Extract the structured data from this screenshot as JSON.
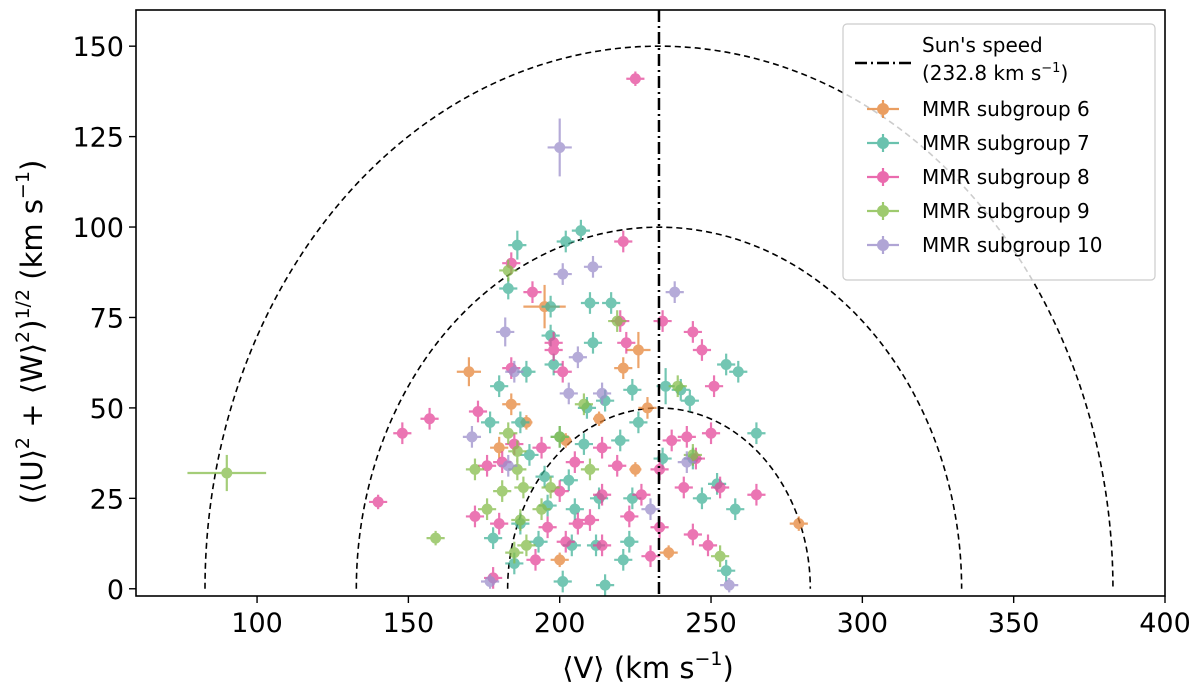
{
  "chart_data": {
    "type": "scatter",
    "title": "",
    "xlabel": "⟨V⟩ (km s",
    "xlabel_exp": "−1",
    "xlabel_tail": ")",
    "ylabel": "(⟨U⟩",
    "ylabel_exp1": "2",
    "ylabel_mid": " + ⟨W⟩",
    "ylabel_exp2": "2",
    "ylabel_mid2": ")",
    "ylabel_exp3": "1/2",
    "ylabel_unit": "   (km s",
    "ylabel_unit_exp": "−1",
    "ylabel_unit_tail": ")",
    "xlim": [
      60,
      400
    ],
    "ylim": [
      -2,
      160
    ],
    "xticks": [
      100,
      150,
      200,
      250,
      300,
      350,
      400
    ],
    "yticks": [
      0,
      25,
      50,
      75,
      100,
      125,
      150
    ],
    "grid": false,
    "legend_position": "top-right",
    "sun_speed": {
      "x": 232.8,
      "label_line1": "Sun's speed",
      "label_line2": "(232.8 km s",
      "label_line2_exp": "−1",
      "label_line2_tail": ")",
      "color": "#000000"
    },
    "circles": {
      "center_x": 232.8,
      "radii": [
        50,
        100,
        150
      ],
      "color": "#000000"
    },
    "series": [
      {
        "name": "MMR subgroup 6",
        "color": "#e6863a",
        "points": [
          [
            195,
            78,
            7,
            6
          ],
          [
            226,
            66,
            4,
            5
          ],
          [
            221,
            61,
            3,
            3
          ],
          [
            170,
            60,
            4,
            4
          ],
          [
            184,
            51,
            3,
            3
          ],
          [
            180,
            39,
            3,
            3
          ],
          [
            229,
            50,
            3,
            3
          ],
          [
            189,
            46,
            2,
            2
          ],
          [
            202,
            41,
            2,
            2
          ],
          [
            236,
            10,
            3,
            2
          ],
          [
            200,
            8,
            3,
            2
          ],
          [
            279,
            18,
            3,
            2
          ],
          [
            213,
            47,
            2,
            2
          ],
          [
            225,
            33,
            2,
            2
          ]
        ]
      },
      {
        "name": "MMR subgroup 7",
        "color": "#45b49a",
        "points": [
          [
            186,
            95,
            3,
            4
          ],
          [
            202,
            96,
            3,
            3
          ],
          [
            207,
            99,
            3,
            3
          ],
          [
            183,
            83,
            3,
            3
          ],
          [
            197,
            78,
            3,
            3
          ],
          [
            210,
            79,
            3,
            3
          ],
          [
            217,
            79,
            3,
            3
          ],
          [
            197,
            70,
            3,
            3
          ],
          [
            189,
            60,
            3,
            3
          ],
          [
            198,
            62,
            3,
            3
          ],
          [
            211,
            68,
            3,
            3
          ],
          [
            235,
            56,
            3,
            5
          ],
          [
            240,
            55,
            3,
            3
          ],
          [
            243,
            52,
            3,
            3
          ],
          [
            255,
            62,
            3,
            3
          ],
          [
            259,
            60,
            3,
            3
          ],
          [
            265,
            43,
            3,
            3
          ],
          [
            224,
            55,
            3,
            3
          ],
          [
            215,
            52,
            3,
            3
          ],
          [
            180,
            56,
            3,
            3
          ],
          [
            187,
            46,
            3,
            3
          ],
          [
            177,
            46,
            3,
            3
          ],
          [
            209,
            50,
            3,
            3
          ],
          [
            220,
            41,
            3,
            3
          ],
          [
            226,
            46,
            3,
            3
          ],
          [
            200,
            42,
            3,
            3
          ],
          [
            208,
            40,
            3,
            3
          ],
          [
            195,
            31,
            3,
            3
          ],
          [
            203,
            30,
            3,
            3
          ],
          [
            213,
            25,
            3,
            3
          ],
          [
            224,
            25,
            3,
            3
          ],
          [
            196,
            23,
            3,
            3
          ],
          [
            205,
            22,
            3,
            3
          ],
          [
            187,
            18,
            3,
            3
          ],
          [
            178,
            14,
            3,
            3
          ],
          [
            193,
            13,
            3,
            3
          ],
          [
            204,
            12,
            3,
            3
          ],
          [
            212,
            12,
            3,
            3
          ],
          [
            223,
            13,
            3,
            3
          ],
          [
            185,
            7,
            3,
            3
          ],
          [
            221,
            8,
            3,
            3
          ],
          [
            255,
            5,
            3,
            3
          ],
          [
            201,
            2,
            3,
            3
          ],
          [
            215,
            1,
            3,
            3
          ],
          [
            247,
            25,
            3,
            3
          ],
          [
            258,
            22,
            3,
            3
          ],
          [
            234,
            36,
            3,
            3
          ],
          [
            244,
            36,
            3,
            3
          ],
          [
            190,
            37,
            3,
            3
          ],
          [
            252,
            29,
            3,
            3
          ]
        ]
      },
      {
        "name": "MMR subgroup 8",
        "color": "#e5479a",
        "points": [
          [
            225,
            141,
            3,
            2
          ],
          [
            221,
            96,
            3,
            3
          ],
          [
            184,
            90,
            3,
            3
          ],
          [
            191,
            82,
            3,
            3
          ],
          [
            220,
            74,
            3,
            3
          ],
          [
            234,
            74,
            3,
            3
          ],
          [
            198,
            68,
            3,
            3
          ],
          [
            222,
            68,
            3,
            3
          ],
          [
            244,
            71,
            3,
            3
          ],
          [
            198,
            66,
            3,
            3
          ],
          [
            184,
            61,
            3,
            3
          ],
          [
            201,
            60,
            3,
            3
          ],
          [
            247,
            66,
            3,
            3
          ],
          [
            251,
            56,
            3,
            3
          ],
          [
            157,
            47,
            3,
            3
          ],
          [
            148,
            43,
            3,
            3
          ],
          [
            173,
            49,
            3,
            3
          ],
          [
            181,
            35,
            3,
            3
          ],
          [
            185,
            40,
            3,
            3
          ],
          [
            194,
            39,
            3,
            3
          ],
          [
            214,
            39,
            3,
            3
          ],
          [
            237,
            41,
            3,
            3
          ],
          [
            242,
            42,
            3,
            3
          ],
          [
            250,
            43,
            3,
            3
          ],
          [
            205,
            35,
            3,
            3
          ],
          [
            219,
            34,
            3,
            3
          ],
          [
            233,
            33,
            3,
            3
          ],
          [
            245,
            36,
            3,
            3
          ],
          [
            176,
            34,
            3,
            3
          ],
          [
            200,
            27,
            3,
            3
          ],
          [
            214,
            26,
            3,
            3
          ],
          [
            227,
            26,
            3,
            3
          ],
          [
            241,
            28,
            3,
            3
          ],
          [
            253,
            28,
            3,
            3
          ],
          [
            265,
            26,
            3,
            3
          ],
          [
            140,
            24,
            3,
            2
          ],
          [
            172,
            20,
            3,
            3
          ],
          [
            180,
            18,
            3,
            3
          ],
          [
            196,
            17,
            3,
            3
          ],
          [
            210,
            19,
            3,
            3
          ],
          [
            223,
            20,
            3,
            3
          ],
          [
            233,
            17,
            3,
            3
          ],
          [
            244,
            15,
            3,
            3
          ],
          [
            202,
            13,
            3,
            3
          ],
          [
            214,
            12,
            3,
            3
          ],
          [
            230,
            9,
            3,
            3
          ],
          [
            249,
            12,
            3,
            3
          ],
          [
            178,
            3,
            3,
            3
          ],
          [
            206,
            18,
            3,
            3
          ],
          [
            192,
            8,
            3,
            3
          ]
        ]
      },
      {
        "name": "MMR subgroup 9",
        "color": "#86bd4b",
        "points": [
          [
            90,
            32,
            13,
            5
          ],
          [
            159,
            14,
            3,
            2
          ],
          [
            183,
            88,
            3,
            3
          ],
          [
            219,
            74,
            3,
            3
          ],
          [
            239,
            56,
            3,
            3
          ],
          [
            208,
            51,
            3,
            3
          ],
          [
            200,
            42,
            3,
            3
          ],
          [
            186,
            38,
            3,
            3
          ],
          [
            186,
            33,
            3,
            3
          ],
          [
            172,
            33,
            3,
            3
          ],
          [
            181,
            27,
            3,
            3
          ],
          [
            188,
            28,
            3,
            3
          ],
          [
            197,
            28,
            3,
            3
          ],
          [
            194,
            22,
            3,
            3
          ],
          [
            176,
            22,
            3,
            3
          ],
          [
            187,
            19,
            3,
            3
          ],
          [
            189,
            12,
            3,
            3
          ],
          [
            185,
            10,
            3,
            3
          ],
          [
            244,
            37,
            3,
            3
          ],
          [
            253,
            9,
            3,
            3
          ],
          [
            210,
            33,
            3,
            3
          ],
          [
            183,
            43,
            3,
            3
          ]
        ]
      },
      {
        "name": "MMR subgroup 10",
        "color": "#9d8fcb",
        "points": [
          [
            200,
            122,
            4,
            8
          ],
          [
            211,
            89,
            3,
            3
          ],
          [
            201,
            87,
            3,
            3
          ],
          [
            238,
            82,
            3,
            3
          ],
          [
            182,
            71,
            3,
            4
          ],
          [
            185,
            60,
            3,
            3
          ],
          [
            206,
            64,
            3,
            3
          ],
          [
            203,
            54,
            3,
            3
          ],
          [
            214,
            54,
            3,
            3
          ],
          [
            171,
            42,
            3,
            3
          ],
          [
            183,
            34,
            3,
            3
          ],
          [
            230,
            22,
            3,
            3
          ],
          [
            256,
            1,
            3,
            2
          ],
          [
            177,
            2,
            3,
            2
          ],
          [
            242,
            35,
            3,
            3
          ]
        ]
      }
    ]
  }
}
